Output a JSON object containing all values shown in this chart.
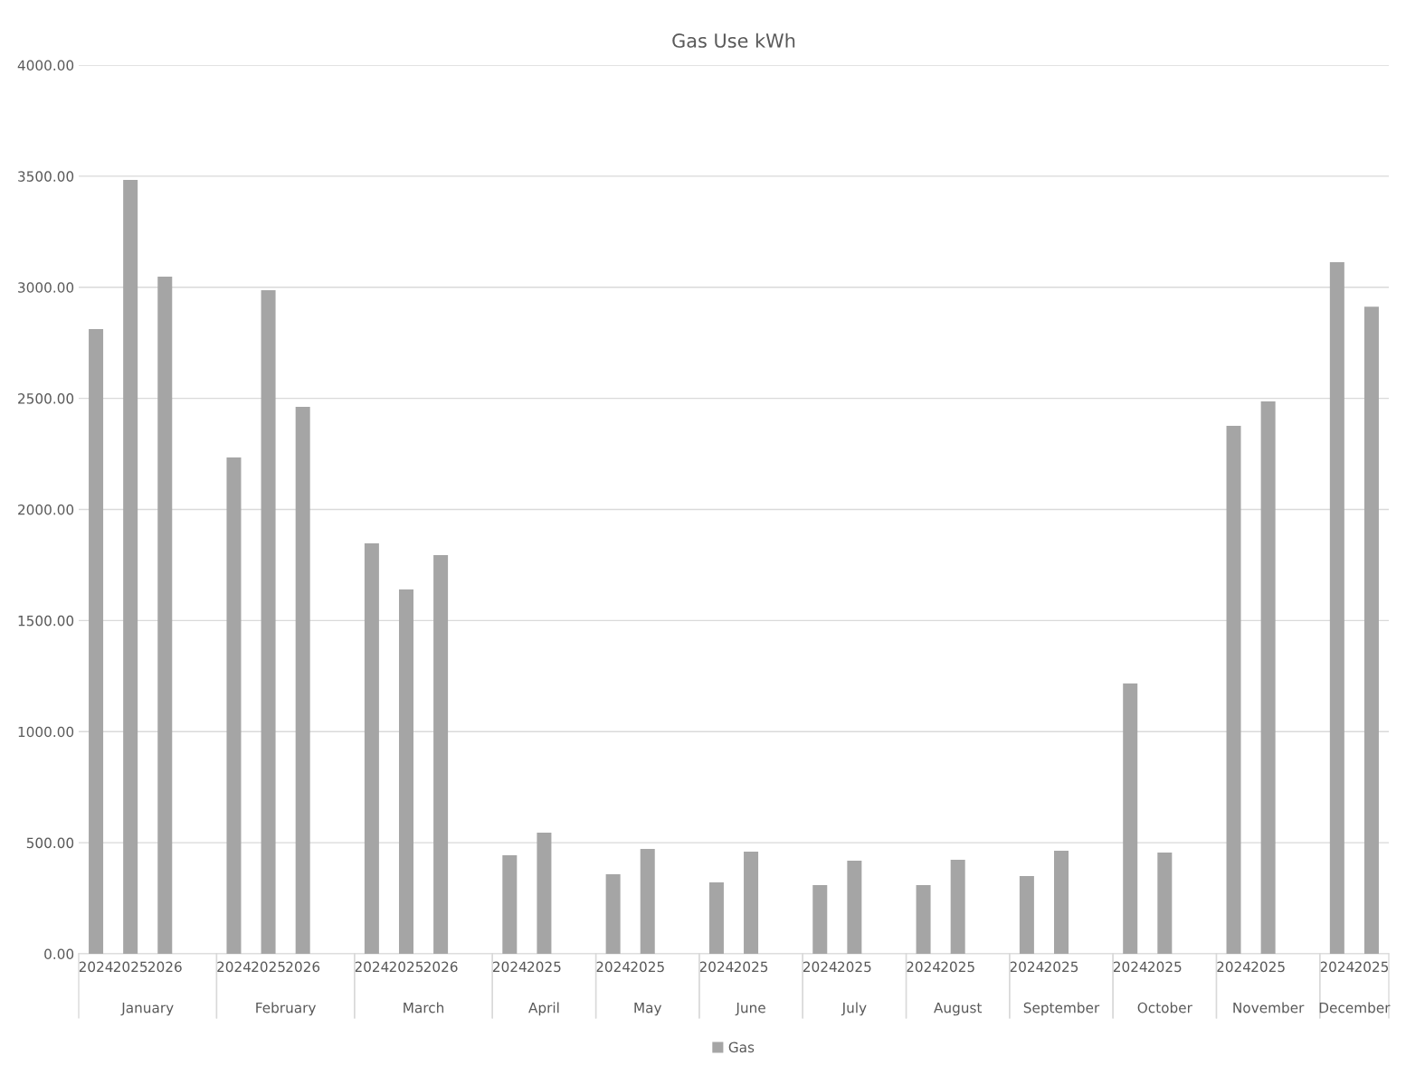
{
  "chart_data": {
    "type": "bar",
    "title": "Gas Use kWh",
    "categories": [
      "2024",
      "2025",
      "2026",
      null,
      "2024",
      "2025",
      "2026",
      null,
      "2024",
      "2025",
      "2026",
      null,
      "2024",
      "2025",
      null,
      "2024",
      "2025",
      null,
      "2024",
      "2025",
      null,
      "2024",
      "2025",
      null,
      "2024",
      "2025",
      null,
      "2024",
      "2025",
      null,
      "2024",
      "2025",
      null,
      "2024",
      "2025",
      null,
      "2024",
      "2025"
    ],
    "series": [
      {
        "name": "Gas",
        "color": "#a5a5a5",
        "values": [
          2812,
          3483,
          3048,
          null,
          2234,
          2987,
          2462,
          null,
          1847,
          1640,
          1794,
          null,
          444,
          545,
          null,
          358,
          472,
          null,
          321,
          460,
          null,
          309,
          419,
          null,
          309,
          423,
          null,
          350,
          464,
          null,
          1217,
          456,
          null,
          2376,
          2486,
          null,
          3113,
          2913
        ]
      }
    ],
    "annotations": [
      "January",
      "February",
      "March",
      "April",
      "May",
      "June",
      "July",
      "August",
      "September",
      "October",
      "November",
      "December"
    ],
    "ylim": [
      0,
      4000
    ],
    "yticks": [
      {
        "value": 0,
        "label": "0.00"
      },
      {
        "value": 500,
        "label": "500.00"
      },
      {
        "value": 1000,
        "label": "1000.00"
      },
      {
        "value": 1500,
        "label": "1500.00"
      },
      {
        "value": 2000,
        "label": "2000.00"
      },
      {
        "value": 2500,
        "label": "2500.00"
      },
      {
        "value": 3000,
        "label": "3000.00"
      },
      {
        "value": 3500,
        "label": "3500.00"
      },
      {
        "value": 4000,
        "label": "4000.00"
      }
    ],
    "grid": "y",
    "legend": "bottom"
  }
}
